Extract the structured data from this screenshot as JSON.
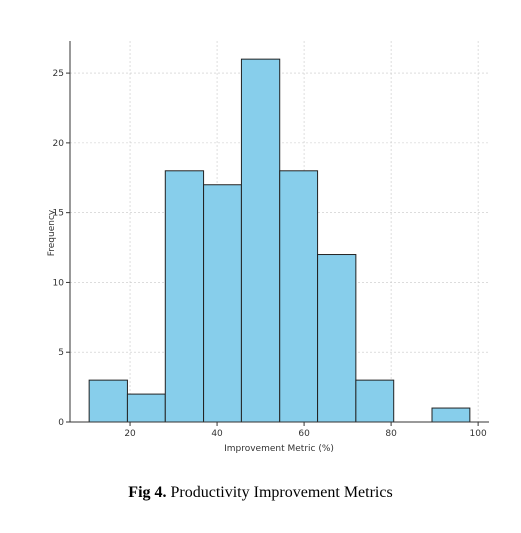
{
  "caption": {
    "label": "Fig  4.",
    "text": "Productivity Improvement Metrics"
  },
  "chart_data": {
    "type": "bar",
    "subtype": "histogram",
    "title": "",
    "xlabel": "Improvement Metric (%)",
    "ylabel": "Frequency",
    "bin_edges": [
      10.6,
      19.4,
      28.1,
      36.9,
      45.6,
      54.4,
      63.1,
      71.9,
      80.6,
      89.4,
      98.1
    ],
    "values": [
      3,
      2,
      18,
      17,
      26,
      18,
      12,
      3,
      0,
      1
    ],
    "xticks": [
      20,
      40,
      60,
      80,
      100
    ],
    "yticks": [
      0,
      5,
      10,
      15,
      20,
      25
    ],
    "xlim": [
      6.2,
      102.5
    ],
    "ylim": [
      0,
      27.3
    ],
    "grid": true,
    "bar_color": "#87ceeb",
    "edge_color": "#222222"
  }
}
